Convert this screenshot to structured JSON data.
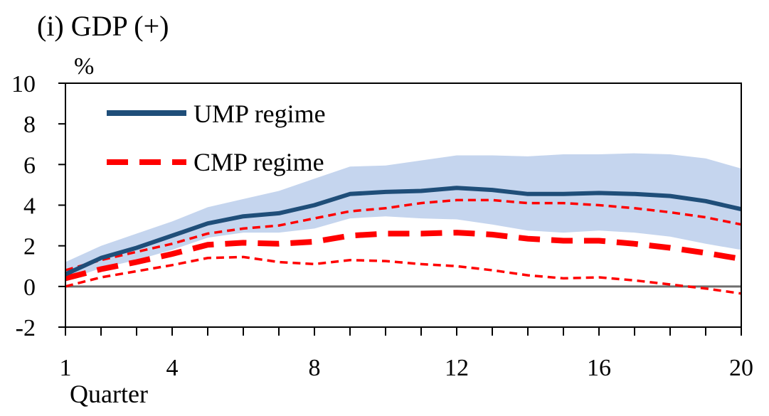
{
  "chart_data": {
    "type": "line",
    "title": "(i) GDP (+)",
    "ylabel": "%",
    "xlabel": "Quarter",
    "xlim": [
      1,
      20
    ],
    "ylim": [
      -2,
      10
    ],
    "x_ticks": [
      1,
      4,
      8,
      12,
      16,
      20
    ],
    "y_ticks": [
      10,
      8,
      6,
      4,
      2,
      0,
      -2
    ],
    "legend_position": "top-left",
    "zero_line": true,
    "x": [
      1,
      2,
      3,
      4,
      5,
      6,
      7,
      8,
      9,
      10,
      11,
      12,
      13,
      14,
      15,
      16,
      17,
      18,
      19,
      20
    ],
    "series": [
      {
        "name": "UMP regime",
        "style": "solid",
        "color": "#1f4e79",
        "values": [
          0.6,
          1.4,
          1.9,
          2.5,
          3.1,
          3.45,
          3.6,
          4.0,
          4.55,
          4.65,
          4.7,
          4.85,
          4.75,
          4.55,
          4.55,
          4.6,
          4.55,
          4.45,
          4.2,
          3.8
        ],
        "band_upper": [
          1.2,
          2.0,
          2.6,
          3.2,
          3.9,
          4.3,
          4.7,
          5.3,
          5.9,
          5.95,
          6.2,
          6.45,
          6.45,
          6.4,
          6.5,
          6.5,
          6.55,
          6.5,
          6.3,
          5.8
        ],
        "band_lower": [
          0.3,
          0.9,
          1.3,
          1.8,
          2.4,
          2.65,
          2.65,
          2.85,
          3.35,
          3.45,
          3.35,
          3.3,
          3.05,
          2.75,
          2.65,
          2.75,
          2.65,
          2.45,
          2.1,
          1.8
        ],
        "band_color": "#c5d5ee"
      },
      {
        "name": "CMP regime",
        "style": "dashed",
        "color": "#ff0000",
        "values": [
          0.4,
          0.85,
          1.2,
          1.6,
          2.05,
          2.15,
          2.1,
          2.2,
          2.5,
          2.6,
          2.6,
          2.65,
          2.55,
          2.35,
          2.25,
          2.25,
          2.1,
          1.9,
          1.65,
          1.35
        ],
        "ci_upper": [
          0.8,
          1.3,
          1.7,
          2.1,
          2.6,
          2.85,
          3.0,
          3.35,
          3.7,
          3.85,
          4.1,
          4.25,
          4.25,
          4.1,
          4.1,
          4.0,
          3.85,
          3.65,
          3.4,
          3.05
        ],
        "ci_lower": [
          0.0,
          0.45,
          0.75,
          1.05,
          1.4,
          1.45,
          1.2,
          1.1,
          1.3,
          1.25,
          1.1,
          1.0,
          0.8,
          0.55,
          0.4,
          0.45,
          0.3,
          0.1,
          -0.1,
          -0.35
        ]
      }
    ]
  }
}
